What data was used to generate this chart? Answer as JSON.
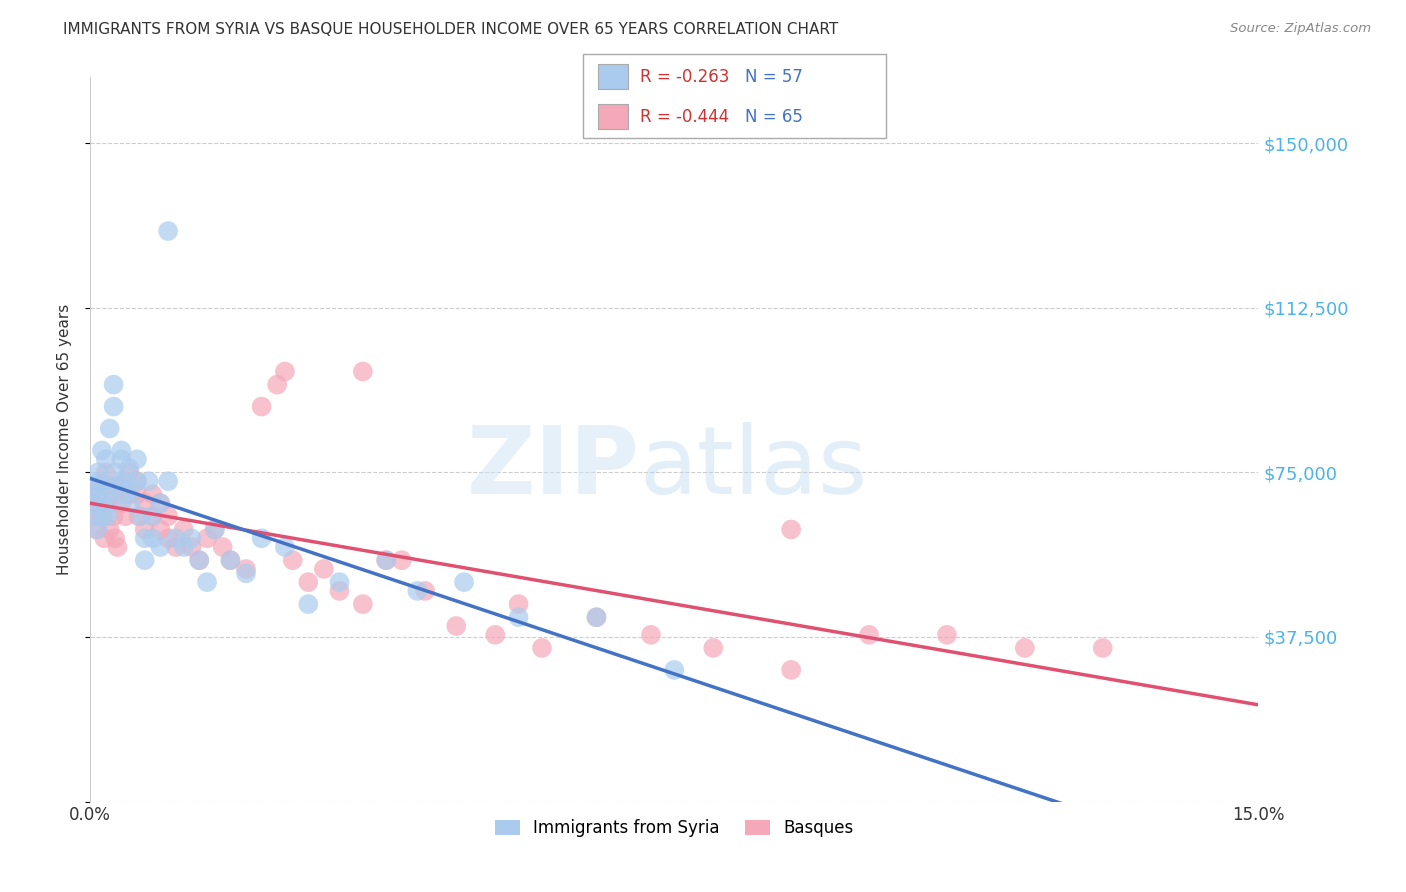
{
  "title": "IMMIGRANTS FROM SYRIA VS BASQUE HOUSEHOLDER INCOME OVER 65 YEARS CORRELATION CHART",
  "source": "Source: ZipAtlas.com",
  "ylabel": "Householder Income Over 65 years",
  "xlim": [
    0.0,
    0.15
  ],
  "ylim": [
    0,
    165000
  ],
  "yticks": [
    0,
    37500,
    75000,
    112500,
    150000
  ],
  "ytick_labels": [
    "",
    "$37,500",
    "$75,000",
    "$112,500",
    "$150,000"
  ],
  "grid_color": "#cccccc",
  "background_color": "#ffffff",
  "series": [
    {
      "label": "Immigrants from Syria",
      "R": -0.263,
      "N": 57,
      "color": "#aacbee",
      "line_color": "#4472c4",
      "line_style": "-",
      "x": [
        0.0003,
        0.0006,
        0.0007,
        0.0008,
        0.0009,
        0.001,
        0.0012,
        0.0013,
        0.0015,
        0.0016,
        0.0018,
        0.002,
        0.002,
        0.0022,
        0.0025,
        0.0028,
        0.003,
        0.003,
        0.0032,
        0.0035,
        0.004,
        0.004,
        0.0042,
        0.0045,
        0.005,
        0.005,
        0.0052,
        0.006,
        0.006,
        0.0065,
        0.007,
        0.007,
        0.0075,
        0.008,
        0.008,
        0.009,
        0.009,
        0.01,
        0.011,
        0.012,
        0.013,
        0.014,
        0.015,
        0.016,
        0.018,
        0.02,
        0.022,
        0.025,
        0.028,
        0.032,
        0.038,
        0.042,
        0.048,
        0.055,
        0.065,
        0.075,
        0.01
      ],
      "y": [
        68000,
        72000,
        65000,
        70000,
        62000,
        75000,
        73000,
        68000,
        80000,
        65000,
        72000,
        78000,
        70000,
        65000,
        85000,
        68000,
        90000,
        95000,
        75000,
        72000,
        78000,
        80000,
        73000,
        70000,
        76000,
        72000,
        68000,
        73000,
        78000,
        65000,
        60000,
        55000,
        73000,
        65000,
        60000,
        68000,
        58000,
        73000,
        60000,
        58000,
        60000,
        55000,
        50000,
        62000,
        55000,
        52000,
        60000,
        58000,
        45000,
        50000,
        55000,
        48000,
        50000,
        42000,
        42000,
        30000,
        130000
      ]
    },
    {
      "label": "Basques",
      "R": -0.444,
      "N": 65,
      "color": "#f4a8b8",
      "line_color": "#e05070",
      "line_style": "-",
      "x": [
        0.0003,
        0.0006,
        0.0008,
        0.001,
        0.0012,
        0.0015,
        0.0018,
        0.002,
        0.002,
        0.0022,
        0.0025,
        0.003,
        0.003,
        0.0032,
        0.0035,
        0.004,
        0.004,
        0.0045,
        0.005,
        0.005,
        0.006,
        0.006,
        0.0062,
        0.007,
        0.007,
        0.008,
        0.008,
        0.009,
        0.009,
        0.01,
        0.01,
        0.011,
        0.012,
        0.013,
        0.014,
        0.015,
        0.016,
        0.017,
        0.018,
        0.02,
        0.022,
        0.024,
        0.026,
        0.028,
        0.03,
        0.032,
        0.035,
        0.038,
        0.04,
        0.043,
        0.047,
        0.052,
        0.058,
        0.065,
        0.072,
        0.08,
        0.09,
        0.1,
        0.11,
        0.12,
        0.025,
        0.035,
        0.055,
        0.09,
        0.13
      ],
      "y": [
        65000,
        70000,
        62000,
        68000,
        72000,
        65000,
        60000,
        75000,
        72000,
        68000,
        62000,
        70000,
        65000,
        60000,
        58000,
        72000,
        68000,
        65000,
        75000,
        70000,
        73000,
        70000,
        65000,
        68000,
        62000,
        70000,
        65000,
        68000,
        62000,
        65000,
        60000,
        58000,
        62000,
        58000,
        55000,
        60000,
        62000,
        58000,
        55000,
        53000,
        90000,
        95000,
        55000,
        50000,
        53000,
        48000,
        45000,
        55000,
        55000,
        48000,
        40000,
        38000,
        35000,
        42000,
        38000,
        35000,
        30000,
        38000,
        38000,
        35000,
        98000,
        98000,
        45000,
        62000,
        35000
      ]
    }
  ],
  "legend_border_color": "#aaaaaa",
  "title_color": "#333333",
  "axis_label_color": "#333333",
  "tick_color_right": "#4db3e6",
  "source_color": "#888888"
}
